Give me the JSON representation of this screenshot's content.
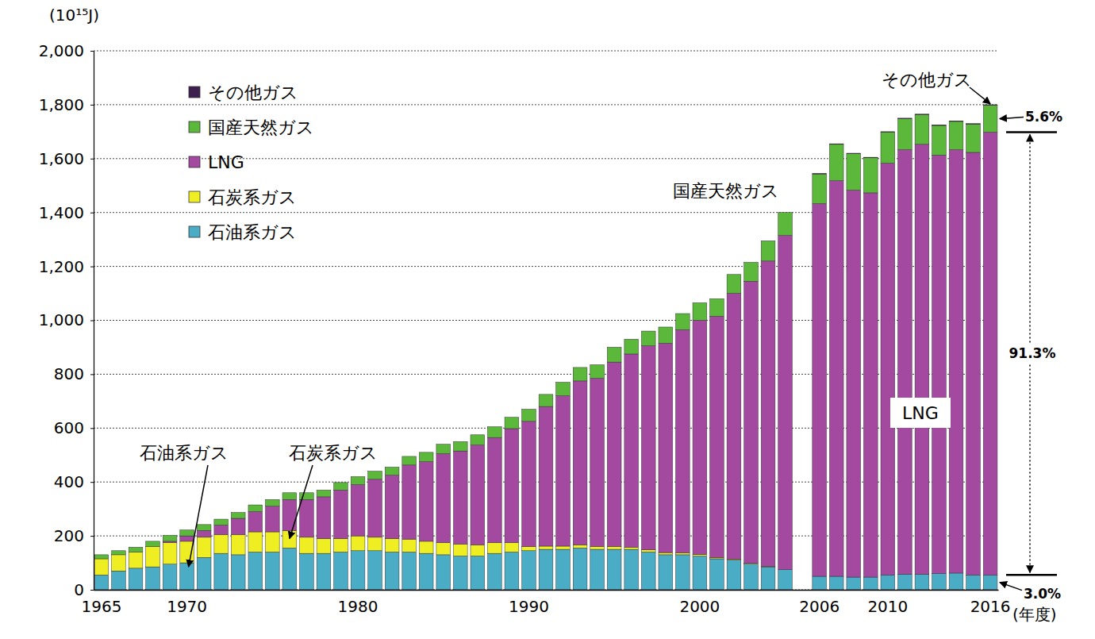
{
  "chart_data": {
    "type": "bar",
    "stacked": true,
    "grid": true,
    "legend": "top-left",
    "y_label": "(10¹⁵J)",
    "x_label": "(年度)",
    "categories": [
      "1965",
      null,
      null,
      null,
      null,
      "1970",
      null,
      null,
      null,
      null,
      null,
      null,
      null,
      null,
      null,
      "1980",
      null,
      null,
      null,
      null,
      null,
      null,
      null,
      null,
      null,
      "1990",
      null,
      null,
      null,
      null,
      null,
      null,
      null,
      null,
      null,
      "2000",
      null,
      null,
      null,
      null,
      null,
      null,
      "2006",
      null,
      null,
      null,
      "2010",
      null,
      null,
      null,
      null,
      null,
      "2016"
    ],
    "ylim": [
      0,
      2000
    ],
    "yticks": [
      0,
      200,
      400,
      600,
      800,
      {
        "value": 1000,
        "label": "1,000"
      },
      {
        "value": 1200,
        "label": "1,200"
      },
      {
        "value": 1400,
        "label": "1,400"
      },
      {
        "value": 1600,
        "label": "1,600"
      },
      {
        "value": 1800,
        "label": "1,800"
      },
      {
        "value": 2000,
        "label": "2,000"
      }
    ],
    "series": [
      {
        "name": "石油系ガス",
        "color": "#4bacc6",
        "values": [
          55,
          70,
          80,
          85,
          95,
          100,
          120,
          135,
          130,
          140,
          140,
          155,
          135,
          135,
          140,
          145,
          145,
          140,
          140,
          135,
          130,
          125,
          125,
          135,
          140,
          145,
          150,
          150,
          155,
          150,
          150,
          150,
          140,
          130,
          130,
          125,
          115,
          110,
          95,
          85,
          75,
          null,
          50,
          50,
          47,
          47,
          55,
          58,
          58,
          60,
          62,
          55,
          55
        ]
      },
      {
        "name": "石炭系ガス",
        "color": "#eeee22",
        "values": [
          60,
          60,
          60,
          75,
          80,
          80,
          75,
          70,
          75,
          75,
          75,
          65,
          60,
          55,
          50,
          55,
          50,
          50,
          48,
          45,
          45,
          45,
          42,
          40,
          35,
          15,
          12,
          12,
          12,
          10,
          10,
          8,
          8,
          8,
          7,
          6,
          5,
          4,
          3,
          2,
          0,
          null,
          0,
          0,
          0,
          0,
          0,
          0,
          0,
          0,
          0,
          0,
          0
        ]
      },
      {
        "name": "LNG",
        "color": "#a3499f",
        "values": [
          0,
          0,
          0,
          0,
          5,
          20,
          25,
          35,
          60,
          75,
          95,
          115,
          140,
          155,
          180,
          190,
          215,
          235,
          275,
          295,
          330,
          345,
          370,
          390,
          423,
          465,
          518,
          558,
          608,
          625,
          685,
          717,
          757,
          777,
          828,
          869,
          895,
          986,
          1047,
          1133,
          1240,
          null,
          1383,
          1468,
          1436,
          1426,
          1528,
          1575,
          1595,
          1553,
          1571,
          1568,
          1643
        ]
      },
      {
        "name": "国産天然ガス",
        "color": "#5cb83a",
        "values": [
          15,
          15,
          18,
          20,
          22,
          22,
          22,
          22,
          22,
          25,
          25,
          25,
          25,
          25,
          28,
          30,
          30,
          30,
          32,
          35,
          35,
          35,
          38,
          40,
          42,
          45,
          45,
          50,
          50,
          50,
          55,
          55,
          55,
          60,
          60,
          65,
          65,
          70,
          70,
          75,
          85,
          null,
          110,
          135,
          135,
          130,
          115,
          115,
          110,
          110,
          105,
          105,
          100
        ]
      },
      {
        "name": "その他ガス",
        "color": "#3f1f4f",
        "values": [
          null,
          null,
          null,
          null,
          null,
          null,
          null,
          null,
          null,
          null,
          null,
          null,
          null,
          null,
          null,
          null,
          null,
          null,
          null,
          null,
          null,
          null,
          null,
          null,
          null,
          null,
          null,
          null,
          null,
          null,
          null,
          null,
          null,
          null,
          null,
          null,
          null,
          null,
          null,
          null,
          null,
          null,
          2,
          2,
          2,
          2,
          2,
          2,
          2,
          2,
          2,
          2,
          2
        ]
      }
    ],
    "annotations": [
      {
        "text": "石油系ガス"
      },
      {
        "text": "石炭系ガス"
      },
      {
        "text": "国産天然ガス"
      },
      {
        "text": "その他ガス"
      },
      {
        "text": "LNG"
      },
      {
        "text": "5.6%"
      },
      {
        "text": "91.3%"
      },
      {
        "text": "3.0%"
      }
    ]
  }
}
